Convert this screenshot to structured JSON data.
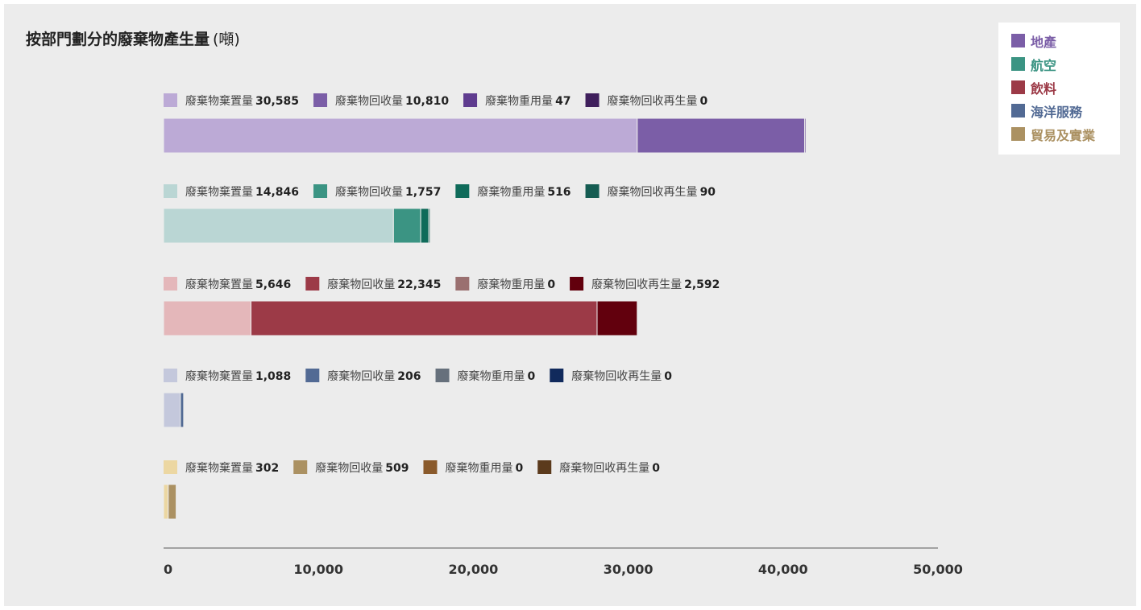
{
  "chart_data": {
    "type": "bar",
    "orientation": "horizontal",
    "stacked": true,
    "title": "按部門劃分的廢棄物產生量",
    "title_unit": "(噸)",
    "xlim": [
      0,
      50000
    ],
    "x_ticks": [
      0,
      10000,
      20000,
      30000,
      40000,
      50000
    ],
    "x_tick_labels": [
      "0",
      "10,000",
      "20,000",
      "30,000",
      "40,000",
      "50,000"
    ],
    "legend_position": "top-right",
    "sectors": [
      {
        "name": "地產",
        "color": "#7b5ea7",
        "segments": [
          {
            "label": "廢棄物棄置量",
            "value": 30585,
            "value_label": "30,585",
            "color": "#bcaad6"
          },
          {
            "label": "廢棄物回收量",
            "value": 10810,
            "value_label": "10,810",
            "color": "#7b5ea7"
          },
          {
            "label": "廢棄物重用量",
            "value": 47,
            "value_label": "47",
            "color": "#5f3c8f"
          },
          {
            "label": "廢棄物回收再生量",
            "value": 0,
            "value_label": "0",
            "color": "#3f1f5c"
          }
        ]
      },
      {
        "name": "航空",
        "color": "#3b9483",
        "segments": [
          {
            "label": "廢棄物棄置量",
            "value": 14846,
            "value_label": "14,846",
            "color": "#bad6d4"
          },
          {
            "label": "廢棄物回收量",
            "value": 1757,
            "value_label": "1,757",
            "color": "#3b9483"
          },
          {
            "label": "廢棄物重用量",
            "value": 516,
            "value_label": "516",
            "color": "#0f6b5a"
          },
          {
            "label": "廢棄物回收再生量",
            "value": 90,
            "value_label": "90",
            "color": "#155c52"
          }
        ]
      },
      {
        "name": "飲料",
        "color": "#9c3a47",
        "segments": [
          {
            "label": "廢棄物棄置量",
            "value": 5646,
            "value_label": "5,646",
            "color": "#e4b7ba"
          },
          {
            "label": "廢棄物回收量",
            "value": 22345,
            "value_label": "22,345",
            "color": "#9c3a47"
          },
          {
            "label": "廢棄物重用量",
            "value": 0,
            "value_label": "0",
            "color": "#9a7070"
          },
          {
            "label": "廢棄物回收再生量",
            "value": 2592,
            "value_label": "2,592",
            "color": "#62000d"
          }
        ]
      },
      {
        "name": "海洋服務",
        "color": "#526a94",
        "segments": [
          {
            "label": "廢棄物棄置量",
            "value": 1088,
            "value_label": "1,088",
            "color": "#c4c8dc"
          },
          {
            "label": "廢棄物回收量",
            "value": 206,
            "value_label": "206",
            "color": "#526a94"
          },
          {
            "label": "廢棄物重用量",
            "value": 0,
            "value_label": "0",
            "color": "#66707c"
          },
          {
            "label": "廢棄物回收再生量",
            "value": 0,
            "value_label": "0",
            "color": "#112a5c"
          }
        ]
      },
      {
        "name": "貿易及實業",
        "color": "#ab9162",
        "segments": [
          {
            "label": "廢棄物棄置量",
            "value": 302,
            "value_label": "302",
            "color": "#ecd7a2"
          },
          {
            "label": "廢棄物回收量",
            "value": 509,
            "value_label": "509",
            "color": "#ab9162"
          },
          {
            "label": "廢棄物重用量",
            "value": 0,
            "value_label": "0",
            "color": "#8a5a2b"
          },
          {
            "label": "廢棄物回收再生量",
            "value": 0,
            "value_label": "0",
            "color": "#5b3a1c"
          }
        ]
      }
    ]
  }
}
